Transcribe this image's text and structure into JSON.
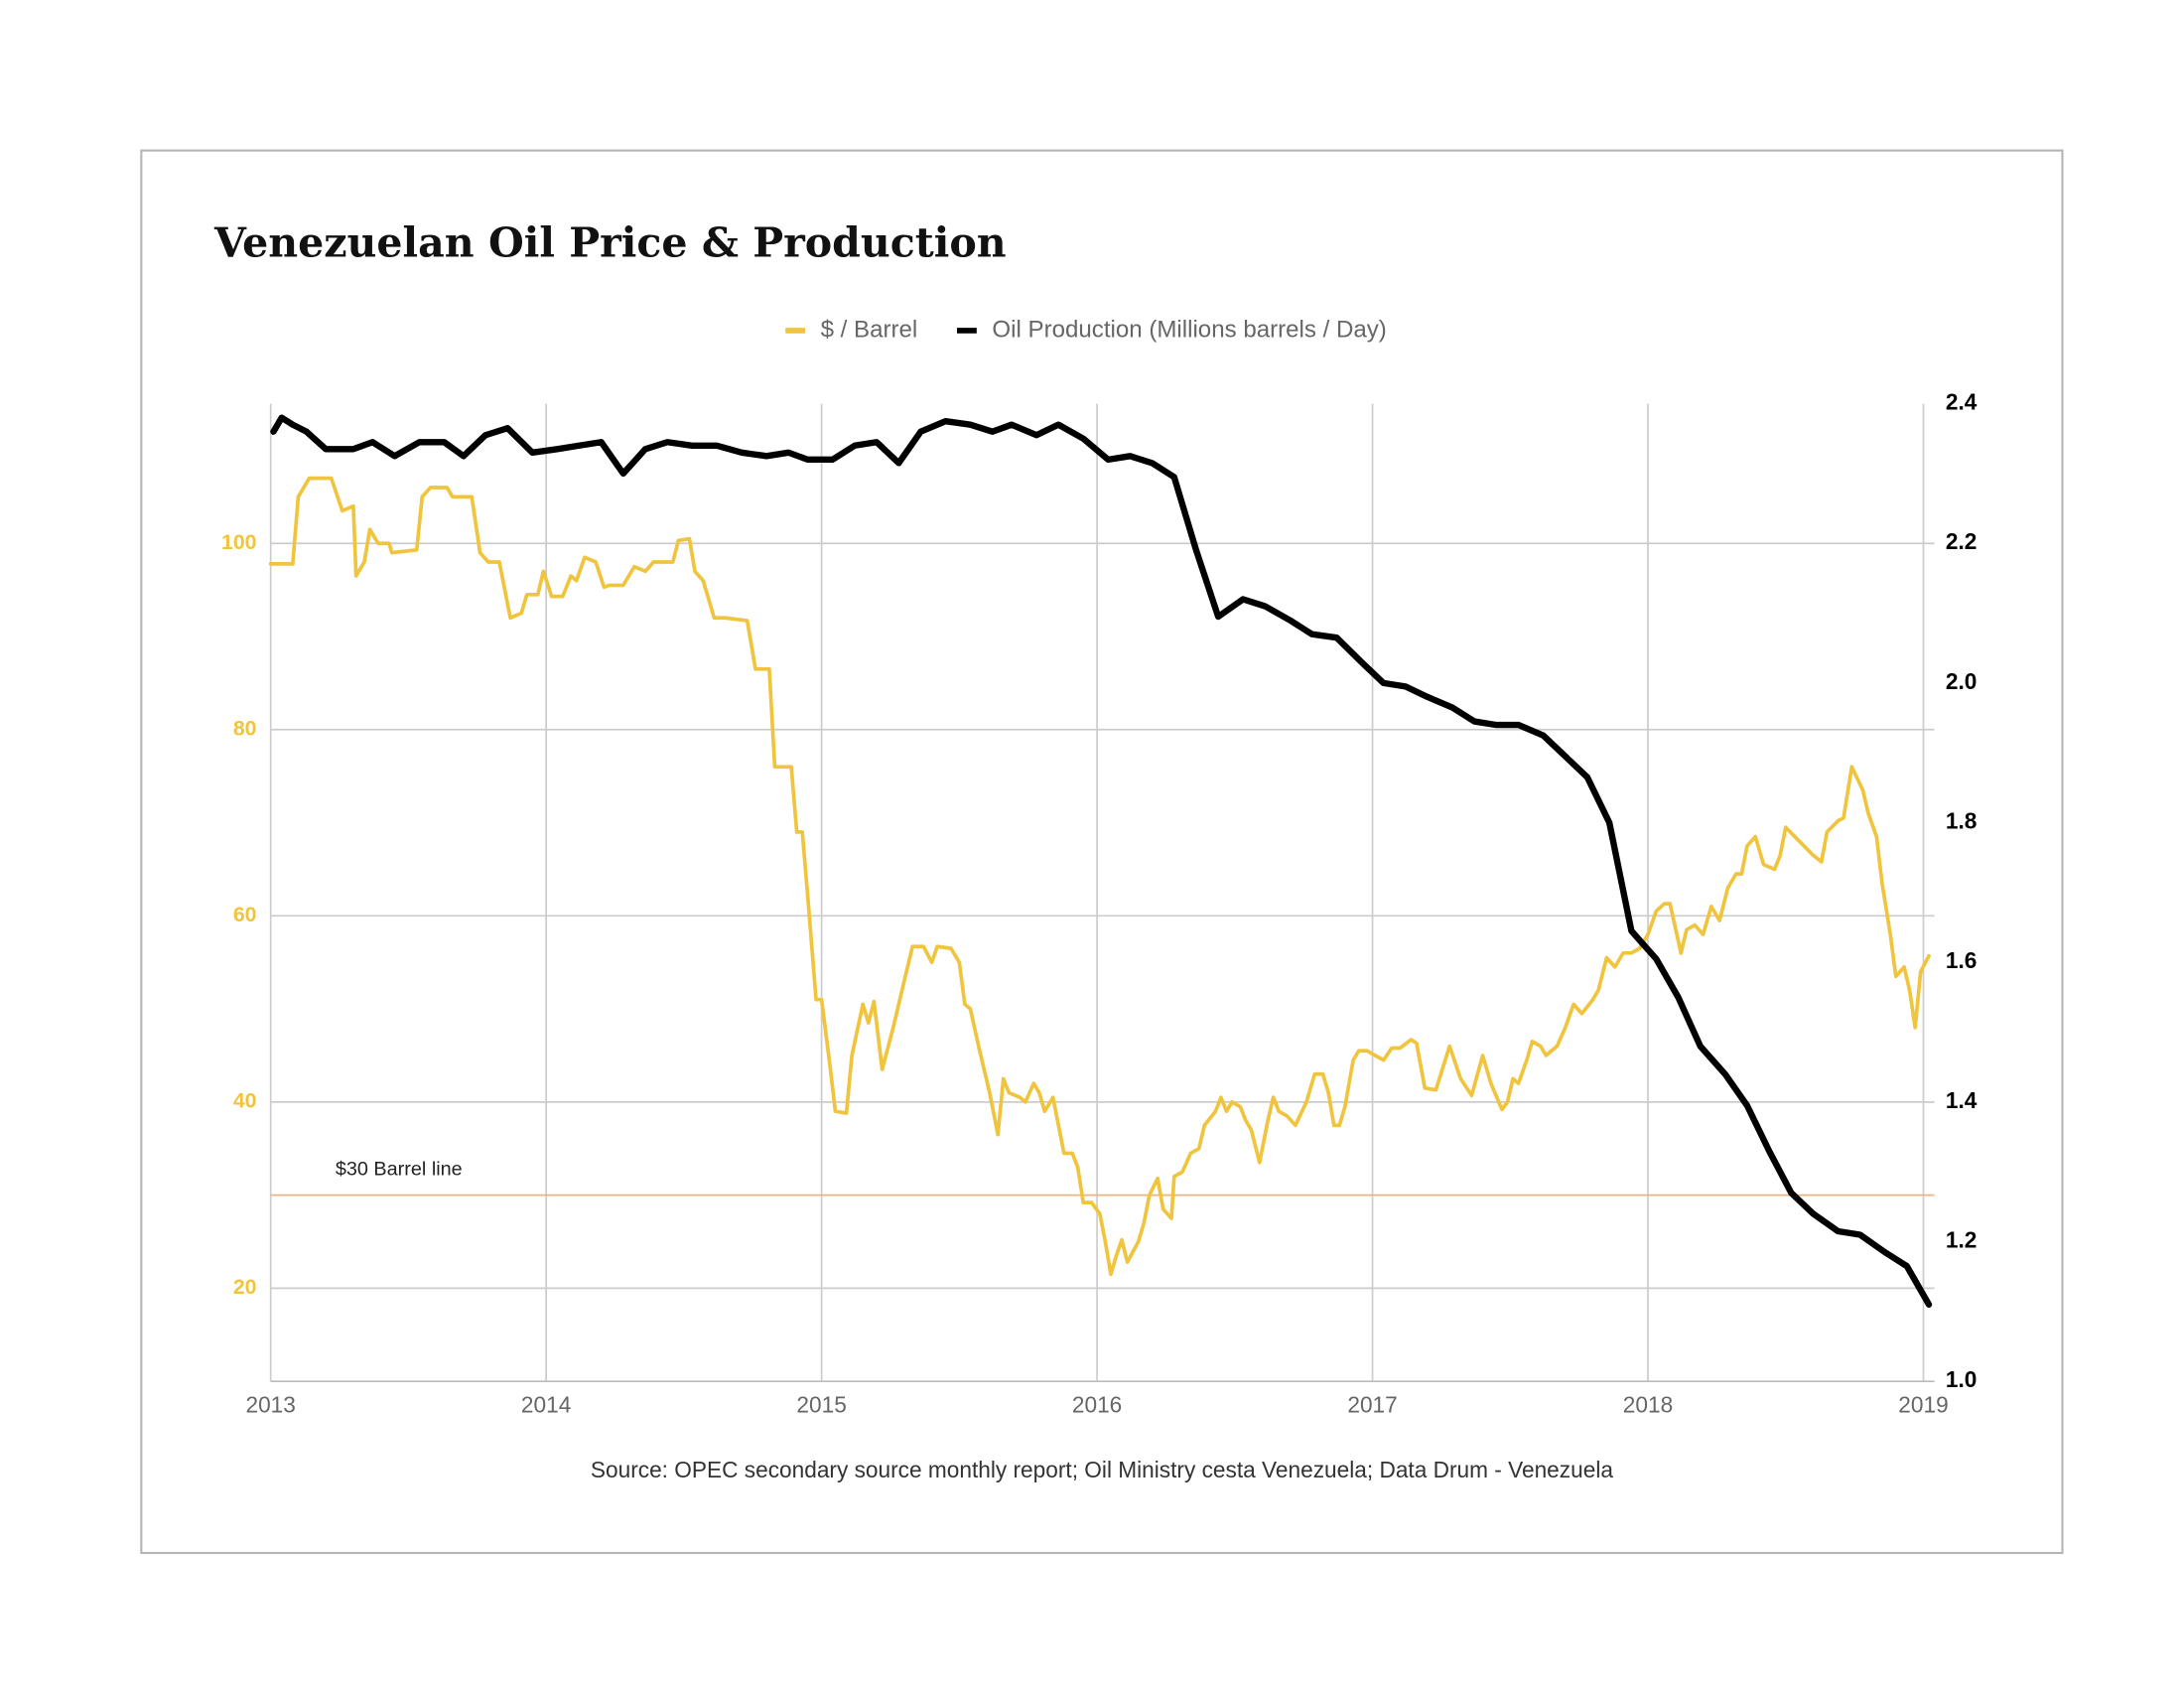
{
  "chart_data": {
    "type": "line",
    "title": "Venezuelan Oil Price & Production",
    "source": "Source: OPEC secondary source monthly report; Oil Ministry cesta Venezuela; Data Drum - Venezuela",
    "xlim": [
      2013,
      2019.04
    ],
    "xticks": [
      2013,
      2014,
      2015,
      2016,
      2017,
      2018,
      2019
    ],
    "ylim": [
      10,
      115
    ],
    "yticks": [
      20,
      40,
      60,
      80,
      100
    ],
    "y2lim": [
      1.0,
      2.4
    ],
    "y2ticks": [
      {
        "value": 1.0,
        "label": "1.0"
      },
      1.2,
      1.4,
      1.6,
      1.8,
      {
        "value": 2.0,
        "label": "2.0"
      },
      2.2,
      2.4
    ],
    "grid": true,
    "legend": "top",
    "reference_line": {
      "value": 30,
      "label": "$30 Barrel line",
      "color": "#f4b183"
    },
    "series": [
      {
        "name": "$ / Barrel",
        "color": "#f0c43c",
        "axis": "y",
        "x": [
          2013.0,
          2013.08,
          2013.1,
          2013.14,
          2013.22,
          2013.26,
          2013.3,
          2013.31,
          2013.34,
          2013.36,
          2013.39,
          2013.43,
          2013.44,
          2013.53,
          2013.55,
          2013.58,
          2013.64,
          2013.66,
          2013.73,
          2013.76,
          2013.79,
          2013.83,
          2013.87,
          2013.91,
          2013.93,
          2013.97,
          2013.99,
          2014.02,
          2014.06,
          2014.09,
          2014.11,
          2014.14,
          2014.18,
          2014.21,
          2014.23,
          2014.28,
          2014.32,
          2014.36,
          2014.39,
          2014.46,
          2014.48,
          2014.52,
          2014.54,
          2014.57,
          2014.61,
          2014.65,
          2014.73,
          2014.76,
          2014.81,
          2014.83,
          2014.89,
          2014.91,
          2014.93,
          2014.95,
          2014.98,
          2015.0,
          2015.03,
          2015.05,
          2015.09,
          2015.11,
          2015.15,
          2015.17,
          2015.19,
          2015.22,
          2015.26,
          2015.3,
          2015.33,
          2015.37,
          2015.4,
          2015.42,
          2015.47,
          2015.5,
          2015.52,
          2015.54,
          2015.57,
          2015.61,
          2015.64,
          2015.66,
          2015.68,
          2015.72,
          2015.74,
          2015.77,
          2015.79,
          2015.81,
          2015.84,
          2015.88,
          2015.91,
          2015.93,
          2015.95,
          2015.98,
          2016.01,
          2016.03,
          2016.05,
          2016.07,
          2016.09,
          2016.11,
          2016.15,
          2016.17,
          2016.19,
          2016.22,
          2016.24,
          2016.27,
          2016.28,
          2016.31,
          2016.34,
          2016.37,
          2016.39,
          2016.43,
          2016.45,
          2016.47,
          2016.49,
          2016.52,
          2016.54,
          2016.56,
          2016.59,
          2016.62,
          2016.64,
          2016.66,
          2016.69,
          2016.72,
          2016.76,
          2016.79,
          2016.82,
          2016.84,
          2016.86,
          2016.88,
          2016.9,
          2016.93,
          2016.95,
          2016.98,
          2017.01,
          2017.04,
          2017.07,
          2017.1,
          2017.14,
          2017.16,
          2017.19,
          2017.23,
          2017.28,
          2017.32,
          2017.36,
          2017.4,
          2017.43,
          2017.47,
          2017.49,
          2017.51,
          2017.53,
          2017.56,
          2017.58,
          2017.61,
          2017.63,
          2017.67,
          2017.7,
          2017.73,
          2017.76,
          2017.8,
          2017.82,
          2017.85,
          2017.88,
          2017.91,
          2017.94,
          2017.97,
          2018.0,
          2018.03,
          2018.06,
          2018.08,
          2018.12,
          2018.14,
          2018.17,
          2018.2,
          2018.23,
          2018.26,
          2018.29,
          2018.32,
          2018.34,
          2018.36,
          2018.39,
          2018.42,
          2018.46,
          2018.48,
          2018.5,
          2018.55,
          2018.6,
          2018.63,
          2018.65,
          2018.69,
          2018.71,
          2018.74,
          2018.78,
          2018.8,
          2018.83,
          2018.85,
          2018.88,
          2018.9,
          2018.93,
          2018.95,
          2018.97,
          2018.99,
          2019.02
        ],
        "values": [
          97.8,
          97.8,
          105,
          107,
          107,
          103.5,
          104,
          96.5,
          98,
          101.5,
          100,
          100,
          99,
          99.3,
          105,
          106,
          106,
          105,
          105,
          99,
          98,
          98,
          92,
          92.5,
          94.5,
          94.5,
          97,
          94.3,
          94.3,
          96.5,
          96,
          98.5,
          98,
          95.3,
          95.5,
          95.5,
          97.5,
          97,
          98,
          98,
          100.3,
          100.5,
          97,
          96,
          92,
          92,
          91.7,
          86.5,
          86.5,
          76,
          76,
          69,
          69,
          62,
          51,
          51,
          44,
          39,
          38.8,
          45,
          50.5,
          48.5,
          50.8,
          43.5,
          48,
          53,
          56.7,
          56.7,
          55,
          56.7,
          56.5,
          55,
          50.5,
          50,
          46,
          41,
          36.5,
          42.5,
          41,
          40.5,
          40,
          42,
          41,
          39,
          40.5,
          34.5,
          34.5,
          33,
          29.2,
          29.2,
          28,
          25,
          21.5,
          23.5,
          25.2,
          22.8,
          25,
          27,
          30,
          31.8,
          28.5,
          27.5,
          32,
          32.5,
          34.5,
          35,
          37.5,
          39,
          40.5,
          39,
          40,
          39.5,
          38,
          37,
          33.5,
          38,
          40.5,
          39,
          38.5,
          37.5,
          40,
          43,
          43,
          41,
          37.5,
          37.5,
          39.5,
          44.5,
          45.5,
          45.5,
          45,
          44.5,
          45.8,
          45.8,
          46.7,
          46.3,
          41.5,
          41.3,
          46,
          42.5,
          40.7,
          45,
          42,
          39.2,
          40,
          42.5,
          42,
          44.5,
          46.5,
          46,
          45,
          46,
          48,
          50.5,
          49.5,
          51,
          52,
          55.5,
          54.5,
          56,
          56,
          56.5,
          58,
          60.5,
          61.3,
          61.3,
          56,
          58.5,
          59,
          58,
          61,
          59.5,
          63,
          64.5,
          64.5,
          67.5,
          68.5,
          65.5,
          65,
          66.5,
          69.5,
          68,
          66.5,
          65.8,
          69,
          70.2,
          70.5,
          76,
          73.5,
          71,
          68.5,
          63.5,
          58,
          53.5,
          54.5,
          52,
          48,
          54,
          55.7
        ]
      },
      {
        "name": "Oil Production (Millions barrels / Day)",
        "color": "#000000",
        "axis": "y2",
        "x": [
          2013.01,
          2013.04,
          2013.08,
          2013.13,
          2013.2,
          2013.3,
          2013.37,
          2013.45,
          2013.54,
          2013.63,
          2013.7,
          2013.78,
          2013.86,
          2013.95,
          2014.04,
          2014.12,
          2014.2,
          2014.28,
          2014.36,
          2014.44,
          2014.53,
          2014.62,
          2014.71,
          2014.8,
          2014.88,
          2014.95,
          2015.04,
          2015.12,
          2015.2,
          2015.28,
          2015.36,
          2015.45,
          2015.54,
          2015.62,
          2015.69,
          2015.78,
          2015.86,
          2015.95,
          2016.04,
          2016.12,
          2016.2,
          2016.28,
          2016.36,
          2016.44,
          2016.53,
          2016.61,
          2016.7,
          2016.78,
          2016.87,
          2016.96,
          2017.04,
          2017.12,
          2017.2,
          2017.29,
          2017.37,
          2017.45,
          2017.53,
          2017.62,
          2017.7,
          2017.78,
          2017.86,
          2017.94,
          2018.03,
          2018.11,
          2018.19,
          2018.28,
          2018.36,
          2018.44,
          2018.52,
          2018.6,
          2018.69,
          2018.77,
          2018.86,
          2018.94,
          2019.02
        ],
        "values": [
          2.36,
          2.38,
          2.37,
          2.36,
          2.335,
          2.335,
          2.345,
          2.325,
          2.345,
          2.345,
          2.325,
          2.355,
          2.365,
          2.33,
          2.335,
          2.34,
          2.345,
          2.3,
          2.335,
          2.345,
          2.34,
          2.34,
          2.33,
          2.325,
          2.33,
          2.32,
          2.32,
          2.34,
          2.345,
          2.315,
          2.36,
          2.375,
          2.37,
          2.36,
          2.37,
          2.355,
          2.37,
          2.35,
          2.32,
          2.325,
          2.315,
          2.295,
          2.19,
          2.095,
          2.12,
          2.11,
          2.09,
          2.07,
          2.065,
          2.03,
          2.0,
          1.995,
          1.98,
          1.965,
          1.945,
          1.94,
          1.94,
          1.925,
          1.895,
          1.865,
          1.8,
          1.645,
          1.605,
          1.55,
          1.48,
          1.44,
          1.395,
          1.33,
          1.27,
          1.24,
          1.215,
          1.21,
          1.185,
          1.165,
          1.11
        ]
      }
    ]
  }
}
